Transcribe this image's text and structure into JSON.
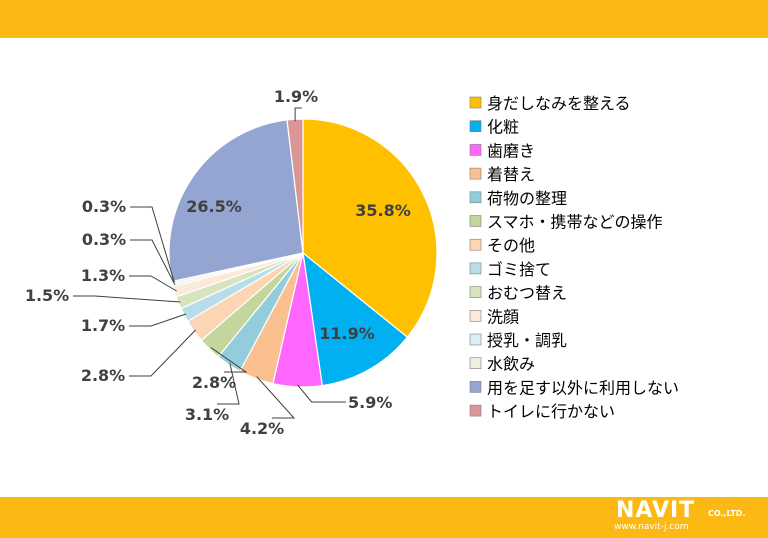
{
  "header": {
    "bar_color": "#fdb913"
  },
  "footer": {
    "bar_color": "#fdb913"
  },
  "logo": {
    "name": "NAVIT",
    "company_suffix": "CO.,LTD.",
    "url": "www.navit-j.com"
  },
  "chart_data": {
    "type": "pie",
    "title": "",
    "legend_position": "right",
    "start_angle": "12 o'clock, clockwise",
    "slices": [
      {
        "label": "身だしなみを整える",
        "value": 35.8,
        "display": "35.8%",
        "color": "#ffc000"
      },
      {
        "label": "化粧",
        "value": 11.9,
        "display": "11.9%",
        "color": "#00b0f0"
      },
      {
        "label": "歯磨き",
        "value": 5.9,
        "display": "5.9%",
        "color": "#ff66ff"
      },
      {
        "label": "着替え",
        "value": 4.2,
        "display": "4.2%",
        "color": "#fac090"
      },
      {
        "label": "荷物の整理",
        "value": 3.1,
        "display": "3.1%",
        "color": "#93cddd"
      },
      {
        "label": "スマホ・携帯などの操作",
        "value": 2.8,
        "display": "2.8%",
        "color": "#c3d69b"
      },
      {
        "label": "その他",
        "value": 2.8,
        "display": "2.8%",
        "color": "#fcd5b5"
      },
      {
        "label": "ゴミ捨て",
        "value": 1.7,
        "display": "1.7%",
        "color": "#b7dee8"
      },
      {
        "label": "おむつ替え",
        "value": 1.5,
        "display": "1.5%",
        "color": "#d7e4bd"
      },
      {
        "label": "洗顔",
        "value": 1.3,
        "display": "1.3%",
        "color": "#fde9d9"
      },
      {
        "label": "授乳・調乳",
        "value": 0.3,
        "display": "0.3%",
        "color": "#dbeef4"
      },
      {
        "label": "水飲み",
        "value": 0.3,
        "display": "0.3%",
        "color": "#ebf1de"
      },
      {
        "label": "用を足す以外に利用しない",
        "value": 26.5,
        "display": "26.5%",
        "color": "#95a5d1"
      },
      {
        "label": "トイレに行かない",
        "value": 1.9,
        "display": "1.9%",
        "color": "#d99694"
      }
    ]
  }
}
